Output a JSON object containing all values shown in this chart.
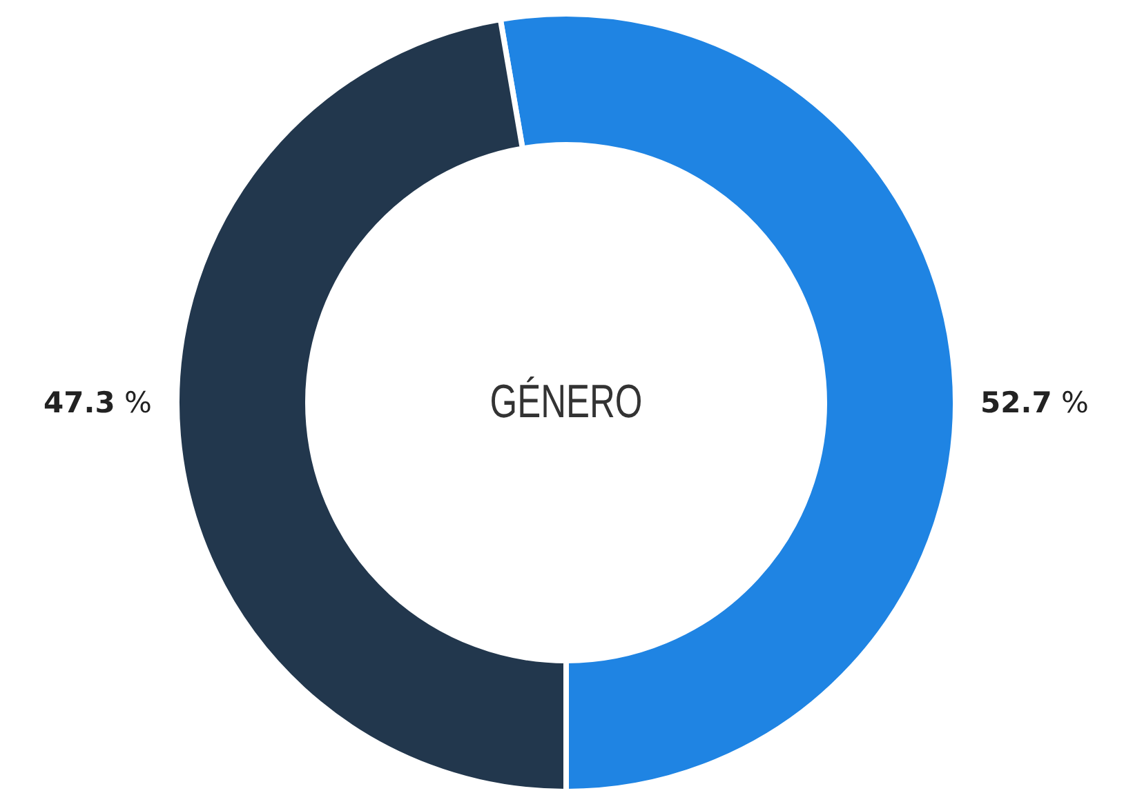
{
  "chart_data": {
    "type": "donut",
    "title": "GÉNERO",
    "categories": [
      null,
      null
    ],
    "values": [
      52.7,
      47.3
    ],
    "colors": [
      "#1f84e3",
      "#22374d"
    ],
    "value_labels": [
      "52.7 %",
      "47.3 %"
    ]
  }
}
